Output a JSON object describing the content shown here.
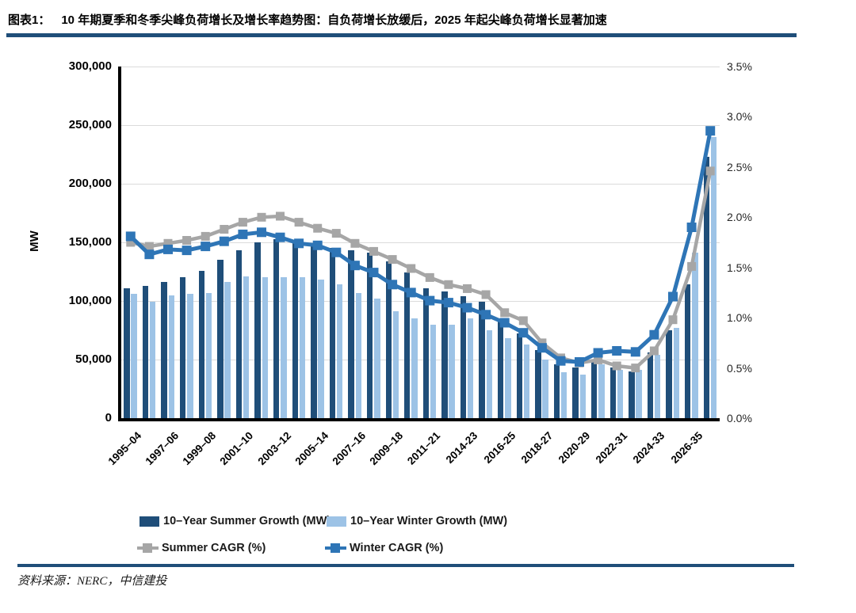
{
  "header": {
    "figure_label": "图表1：",
    "title": "10 年期夏季和冬季尖峰负荷增长及增长率趋势图：自负荷增长放缓后，2025 年起尖峰负荷增长显著加速"
  },
  "footer": {
    "source": "资料来源：NERC，中信建投"
  },
  "colors": {
    "rule": "#1F4E79",
    "summer_bar": "#1F4E79",
    "winter_bar": "#9DC3E6",
    "summer_line": "#A6A6A6",
    "winter_line": "#2E75B6",
    "gridline": "#DBDBDB",
    "axis": "#000000"
  },
  "chart_data": {
    "type": "bar",
    "subtype": "bar+line combo, dual axis",
    "n_groups": 32,
    "categories": [
      "1995–04",
      "",
      "1997–06",
      "",
      "1999–08",
      "",
      "2001–10",
      "",
      "2003–12",
      "",
      "2005–14",
      "",
      "2007–16",
      "",
      "2009–18",
      "",
      "2011–21",
      "",
      "2014-23",
      "",
      "2016-25",
      "",
      "2018-27",
      "",
      "2020-29",
      "",
      "2022-31",
      "",
      "2024-33",
      "",
      "2026-35",
      ""
    ],
    "left_axis": {
      "title": "MW",
      "min": 0,
      "max": 300000,
      "tick_labels": [
        "300,000",
        "250,000",
        "200,000",
        "150,000",
        "100,000",
        "50,000",
        "0"
      ]
    },
    "right_axis": {
      "min": 0,
      "max": 3.5,
      "tick_labels": [
        "3.5%",
        "3.0%",
        "2.5%",
        "2.0%",
        "1.5%",
        "1.0%",
        "0.5%",
        "0.0%"
      ]
    },
    "grid": true,
    "legend_position": "bottom",
    "series": [
      {
        "name": "10–Year Summer Growth (MW)",
        "type": "bar",
        "axis": "left",
        "color": "#1F4E79",
        "values": [
          111000,
          113000,
          116000,
          120000,
          126000,
          135000,
          143000,
          150000,
          153000,
          151000,
          147000,
          145000,
          143000,
          141000,
          134000,
          124000,
          111000,
          108000,
          104000,
          99000,
          85000,
          72000,
          58000,
          46000,
          43000,
          49000,
          43000,
          40000,
          56000,
          75000,
          114000,
          223000
        ]
      },
      {
        "name": "10–Year Winter Growth (MW)",
        "type": "bar",
        "axis": "left",
        "color": "#9DC3E6",
        "values": [
          106000,
          99000,
          105000,
          106000,
          107000,
          116000,
          121000,
          120000,
          120000,
          120000,
          118000,
          114000,
          107000,
          102000,
          91000,
          85000,
          80000,
          80000,
          85000,
          75000,
          68000,
          63000,
          50000,
          39000,
          37000,
          46000,
          41000,
          41000,
          54000,
          77000,
          141000,
          240000
        ]
      },
      {
        "name": "Summer CAGR (%)",
        "type": "line",
        "axis": "right",
        "color": "#A6A6A6",
        "values": [
          1.75,
          1.71,
          1.74,
          1.77,
          1.81,
          1.88,
          1.95,
          2.0,
          2.01,
          1.95,
          1.89,
          1.84,
          1.74,
          1.66,
          1.58,
          1.49,
          1.4,
          1.33,
          1.29,
          1.23,
          1.05,
          0.97,
          0.75,
          0.6,
          0.55,
          0.58,
          0.52,
          0.5,
          0.67,
          0.98,
          1.51,
          2.46
        ]
      },
      {
        "name": "Winter CAGR (%)",
        "type": "line",
        "axis": "right",
        "color": "#2E75B6",
        "values": [
          1.81,
          1.63,
          1.68,
          1.67,
          1.71,
          1.76,
          1.83,
          1.85,
          1.8,
          1.74,
          1.72,
          1.65,
          1.52,
          1.45,
          1.33,
          1.25,
          1.17,
          1.15,
          1.1,
          1.03,
          0.95,
          0.85,
          0.7,
          0.57,
          0.56,
          0.65,
          0.67,
          0.66,
          0.83,
          1.21,
          1.9,
          2.86
        ]
      }
    ]
  }
}
